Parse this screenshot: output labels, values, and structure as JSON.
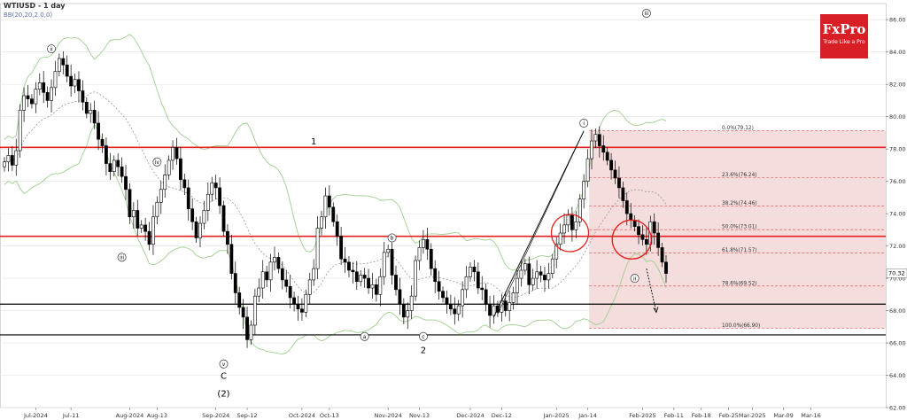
{
  "header": {
    "title": "WTIUSD - 1 day",
    "indicator": "BB(20,20,2.0,0)"
  },
  "logo": {
    "name": "FxPro",
    "tagline": "Trade Like a Pro"
  },
  "colors": {
    "resistance": "#e4201f",
    "support": "#000000",
    "zone": "#f3d2d2",
    "fib": "#d64545",
    "band": "#9ecf8e",
    "mid": "#888888",
    "bull": "#ffffff",
    "bear": "#000000"
  },
  "chart_data": {
    "type": "candlestick",
    "ylim": [
      62.0,
      87.0
    ],
    "yticks": [
      "62.00",
      "64.00",
      "66.00",
      "68.00",
      "70.00",
      "72.00",
      "74.00",
      "76.00",
      "78.00",
      "80.00",
      "82.00",
      "84.00",
      "86.00"
    ],
    "last_price": "70.32",
    "x_labels": [
      {
        "label": "Jul-2024",
        "i": 8
      },
      {
        "label": "Jul-11",
        "i": 17
      },
      {
        "label": "Aug-2024",
        "i": 32
      },
      {
        "label": "Aug-13",
        "i": 39
      },
      {
        "label": "Sep-2024",
        "i": 54
      },
      {
        "label": "Sep-12",
        "i": 62
      },
      {
        "label": "Oct-2024",
        "i": 76
      },
      {
        "label": "Oct-13",
        "i": 83
      },
      {
        "label": "Nov-2024",
        "i": 98
      },
      {
        "label": "Nov-13",
        "i": 106
      },
      {
        "label": "Dec-2024",
        "i": 119
      },
      {
        "label": "Dec-12",
        "i": 127
      },
      {
        "label": "Jan-2025",
        "i": 141
      },
      {
        "label": "Jan-14",
        "i": 149
      },
      {
        "label": "Feb-2025",
        "i": 163
      },
      {
        "label": "Feb-11",
        "i": 171
      },
      {
        "label": "Feb-18",
        "i": 178
      },
      {
        "label": "Feb-25",
        "i": 185
      },
      {
        "label": "Mar-2025",
        "i": 191
      },
      {
        "label": "Mar-09",
        "i": 199
      },
      {
        "label": "Mar-16",
        "i": 206
      }
    ],
    "closes": [
      77.2,
      77.6,
      77.0,
      77.9,
      80.4,
      81.3,
      81.1,
      80.8,
      81.7,
      82.1,
      81.5,
      81.0,
      81.8,
      82.8,
      83.6,
      83.2,
      82.5,
      81.9,
      82.3,
      81.6,
      80.9,
      80.2,
      80.4,
      79.6,
      78.6,
      78.2,
      77.1,
      76.6,
      77.3,
      76.9,
      76.3,
      75.5,
      73.8,
      74.2,
      73.1,
      73.3,
      72.9,
      72.1,
      73.8,
      74.7,
      75.5,
      76.4,
      77.3,
      78.1,
      77.4,
      76.1,
      75.6,
      74.3,
      73.5,
      72.5,
      73.4,
      74.2,
      75.2,
      75.9,
      75.6,
      74.5,
      72.9,
      72.1,
      70.3,
      69.1,
      68.2,
      67.6,
      66.2,
      67.1,
      68.9,
      69.4,
      70.4,
      69.9,
      71.0,
      71.3,
      70.6,
      69.9,
      69.5,
      68.8,
      68.4,
      68.1,
      67.9,
      69.0,
      69.9,
      70.6,
      73.1,
      73.8,
      75.1,
      74.4,
      73.5,
      72.6,
      71.2,
      71.0,
      70.5,
      70.4,
      69.8,
      70.2,
      70.0,
      69.4,
      69.6,
      69.0,
      70.1,
      71.6,
      71.8,
      70.2,
      69.3,
      68.4,
      67.6,
      68.0,
      68.9,
      71.1,
      71.9,
      72.4,
      71.8,
      70.6,
      69.8,
      69.2,
      68.8,
      68.4,
      68.1,
      67.8,
      68.3,
      69.3,
      70.1,
      70.7,
      70.4,
      69.4,
      69.3,
      68.4,
      67.7,
      68.3,
      67.9,
      68.6,
      68.0,
      68.5,
      69.1,
      70.0,
      70.5,
      70.9,
      69.6,
      70.0,
      70.4,
      70.2,
      69.9,
      70.3,
      71.2,
      72.1,
      72.8,
      73.3,
      73.9,
      73.0,
      73.5,
      74.9,
      76.0,
      77.4,
      78.5,
      78.9,
      78.2,
      77.8,
      77.3,
      76.7,
      76.2,
      75.6,
      74.8,
      74.0,
      73.6,
      73.2,
      72.7,
      72.4,
      72.1,
      73.5,
      72.8,
      71.9,
      71.0,
      70.3
    ]
  },
  "levels": {
    "resistance": [
      78.1,
      72.6
    ],
    "support": [
      68.4,
      66.5
    ]
  },
  "fib": [
    {
      "label": "0.0%(79.12)",
      "price": 79.12
    },
    {
      "label": "23.6%(76.24)",
      "price": 76.24
    },
    {
      "label": "38.2%(74.46)",
      "price": 74.46
    },
    {
      "label": "50.0%(73.01)",
      "price": 73.01
    },
    {
      "label": "61.8%(71.57)",
      "price": 71.57
    },
    {
      "label": "78.6%(69.52)",
      "price": 69.52
    },
    {
      "label": "100.0%(66.90)",
      "price": 66.9
    }
  ],
  "waves": [
    {
      "label": "ii",
      "i": 12,
      "price": 84.2,
      "circled": true
    },
    {
      "label": "iii",
      "i": 30,
      "price": 71.3,
      "circled": true
    },
    {
      "label": "iv",
      "i": 39,
      "price": 77.2,
      "circled": true
    },
    {
      "label": "v",
      "i": 56,
      "price": 64.7,
      "circled": true
    },
    {
      "label": "C",
      "i": 56,
      "price": 64.0,
      "circled": false
    },
    {
      "label": "(2)",
      "i": 56,
      "price": 62.9,
      "circled": false
    },
    {
      "label": "1",
      "i": 79,
      "price": 78.5,
      "circled": false
    },
    {
      "label": "b",
      "i": 99,
      "price": 72.5,
      "circled": true
    },
    {
      "label": "a",
      "i": 92,
      "price": 66.4,
      "circled": true
    },
    {
      "label": "c",
      "i": 107,
      "price": 66.4,
      "circled": true
    },
    {
      "label": "2",
      "i": 107,
      "price": 65.6,
      "circled": false
    },
    {
      "label": "i",
      "i": 148,
      "price": 79.6,
      "circled": true
    },
    {
      "label": "ii",
      "i": 161,
      "price": 70.0,
      "circled": true
    },
    {
      "label": "iii",
      "i": 164,
      "price": 86.4,
      "circled": true
    }
  ]
}
